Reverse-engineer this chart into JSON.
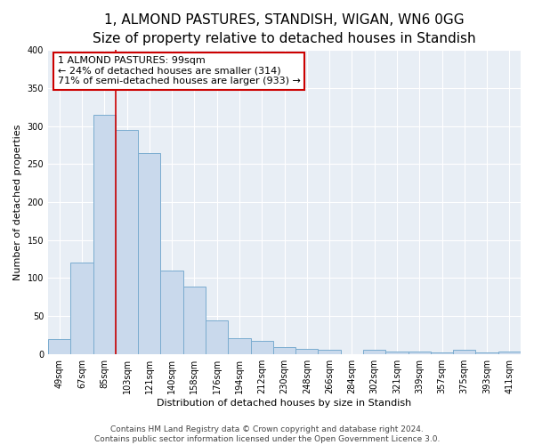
{
  "title": "1, ALMOND PASTURES, STANDISH, WIGAN, WN6 0GG",
  "subtitle": "Size of property relative to detached houses in Standish",
  "xlabel": "Distribution of detached houses by size in Standish",
  "ylabel": "Number of detached properties",
  "bar_labels": [
    "49sqm",
    "67sqm",
    "85sqm",
    "103sqm",
    "121sqm",
    "140sqm",
    "158sqm",
    "176sqm",
    "194sqm",
    "212sqm",
    "230sqm",
    "248sqm",
    "266sqm",
    "284sqm",
    "302sqm",
    "321sqm",
    "339sqm",
    "357sqm",
    "375sqm",
    "393sqm",
    "411sqm"
  ],
  "bar_values": [
    20,
    120,
    315,
    295,
    265,
    110,
    89,
    44,
    21,
    17,
    9,
    7,
    6,
    0,
    6,
    3,
    3,
    2,
    5,
    2,
    3
  ],
  "bar_color": "#c9d9ec",
  "bar_edge_color": "#7aaccf",
  "vline_color": "#cc0000",
  "vline_x_index": 2.5,
  "annotation_title": "1 ALMOND PASTURES: 99sqm",
  "annotation_line1": "← 24% of detached houses are smaller (314)",
  "annotation_line2": "71% of semi-detached houses are larger (933) →",
  "annotation_box_facecolor": "#ffffff",
  "annotation_box_edgecolor": "#cc0000",
  "ylim": [
    0,
    400
  ],
  "yticks": [
    0,
    50,
    100,
    150,
    200,
    250,
    300,
    350,
    400
  ],
  "footer1": "Contains HM Land Registry data © Crown copyright and database right 2024.",
  "footer2": "Contains public sector information licensed under the Open Government Licence 3.0.",
  "title_fontsize": 11,
  "subtitle_fontsize": 9.5,
  "axis_label_fontsize": 8,
  "tick_fontsize": 7,
  "annotation_fontsize": 8,
  "footer_fontsize": 6.5,
  "bg_color": "#e8eef5"
}
